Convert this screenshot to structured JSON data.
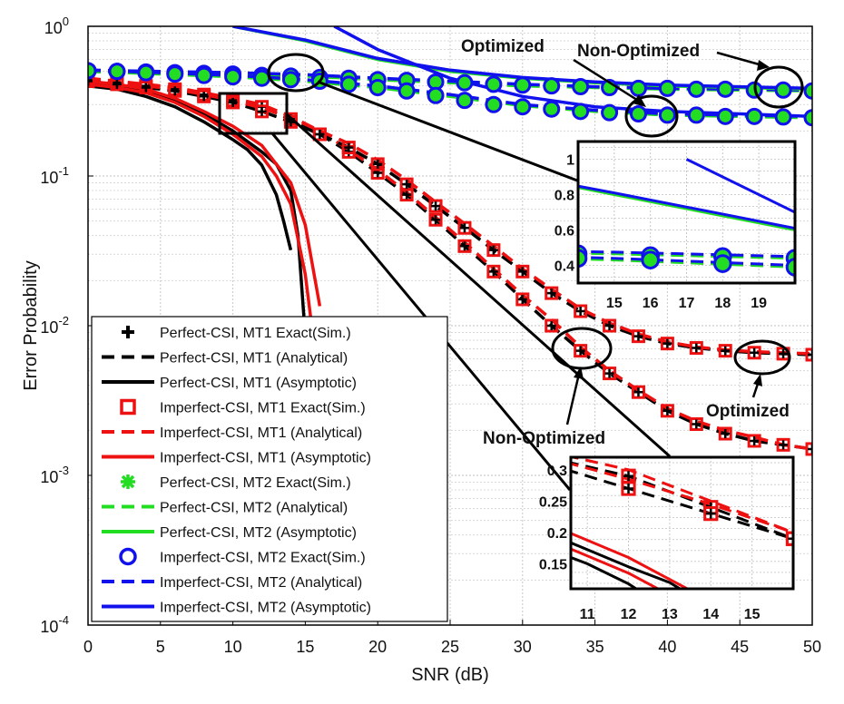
{
  "chart_data": {
    "type": "line",
    "title": "",
    "xlabel": "SNR (dB)",
    "ylabel": "Error Probability",
    "xlim": [
      0,
      50
    ],
    "ylim_log10": [
      -4,
      0
    ],
    "grid": true,
    "x_ticks": [
      "0",
      "5",
      "10",
      "15",
      "20",
      "25",
      "30",
      "35",
      "40",
      "45",
      "50"
    ],
    "y_tick_bases": [
      "10",
      "10",
      "10",
      "10",
      "10"
    ],
    "y_tick_exps": [
      "-4",
      "-3",
      "-2",
      "-1",
      "0"
    ],
    "legend_position": "lower-left",
    "colors": {
      "black": "#000000",
      "red": "#ee1111",
      "green": "#22dd22",
      "blue": "#1111ee"
    },
    "legend": [
      {
        "label": "Perfect-CSI, MT1 Exact(Sim.)",
        "color": "black",
        "style": "marker-plus"
      },
      {
        "label": "Perfect-CSI, MT1 (Analytical)",
        "color": "black",
        "style": "dashed"
      },
      {
        "label": "Perfect-CSI, MT1 (Asymptotic)",
        "color": "black",
        "style": "solid"
      },
      {
        "label": "Imperfect-CSI, MT1 Exact(Sim.)",
        "color": "red",
        "style": "marker-square"
      },
      {
        "label": "Imperfect-CSI, MT1 (Analytical)",
        "color": "red",
        "style": "dashed"
      },
      {
        "label": "Imperfect-CSI, MT1 (Asymptotic)",
        "color": "red",
        "style": "solid"
      },
      {
        "label": "Perfect-CSI, MT2 Exact(Sim.)",
        "color": "green",
        "style": "marker-star"
      },
      {
        "label": "Perfect-CSI, MT2 (Analytical)",
        "color": "green",
        "style": "dashed"
      },
      {
        "label": "Perfect-CSI, MT2 (Asymptotic)",
        "color": "green",
        "style": "solid"
      },
      {
        "label": "Imperfect-CSI, MT2 Exact(Sim.)",
        "color": "blue",
        "style": "marker-circle"
      },
      {
        "label": "Imperfect-CSI, MT2 (Analytical)",
        "color": "blue",
        "style": "dashed"
      },
      {
        "label": "Imperfect-CSI, MT2 (Asymptotic)",
        "color": "blue",
        "style": "solid"
      }
    ],
    "series": [
      {
        "name": "Perfect-CSI, MT1 Analytical (non-optimized)",
        "color": "black",
        "style": "dashed",
        "x": [
          0,
          2,
          4,
          6,
          8,
          10,
          12,
          14,
          16,
          18,
          20,
          22,
          24,
          26,
          28,
          30,
          32,
          34,
          36,
          38,
          40,
          42,
          44,
          46,
          48,
          50
        ],
        "y": [
          0.44,
          0.42,
          0.4,
          0.38,
          0.35,
          0.32,
          0.29,
          0.24,
          0.19,
          0.145,
          0.105,
          0.075,
          0.051,
          0.034,
          0.023,
          0.015,
          0.01,
          0.0068,
          0.0048,
          0.0036,
          0.0027,
          0.0022,
          0.0019,
          0.0017,
          0.0016,
          0.0015
        ]
      },
      {
        "name": "Imperfect-CSI, MT1 Analytical (non-optimized)",
        "color": "red",
        "style": "dashed",
        "x": [
          0,
          2,
          4,
          6,
          8,
          10,
          12,
          14,
          16,
          18,
          20,
          22,
          24,
          26,
          28,
          30,
          32,
          34,
          36,
          38,
          40,
          42,
          44,
          46,
          48,
          50
        ],
        "y": [
          0.45,
          0.43,
          0.41,
          0.39,
          0.36,
          0.33,
          0.3,
          0.25,
          0.2,
          0.15,
          0.11,
          0.078,
          0.053,
          0.036,
          0.024,
          0.016,
          0.011,
          0.0072,
          0.005,
          0.0037,
          0.0028,
          0.0023,
          0.002,
          0.0018,
          0.0016,
          0.0015
        ]
      },
      {
        "name": "Perfect-CSI, MT1 Analytical (optimized)",
        "color": "black",
        "style": "dashed",
        "x": [
          0,
          2,
          4,
          6,
          8,
          10,
          12,
          14,
          16,
          18,
          20,
          22,
          24,
          26,
          28,
          30,
          32,
          34,
          36,
          38,
          40,
          42,
          44,
          46,
          48,
          50
        ],
        "y": [
          0.43,
          0.41,
          0.39,
          0.37,
          0.34,
          0.31,
          0.27,
          0.23,
          0.19,
          0.155,
          0.12,
          0.088,
          0.063,
          0.045,
          0.032,
          0.023,
          0.0165,
          0.0125,
          0.01,
          0.0085,
          0.0076,
          0.0071,
          0.0068,
          0.0066,
          0.0065,
          0.0064
        ]
      },
      {
        "name": "Imperfect-CSI, MT1 Analytical (optimized)",
        "color": "red",
        "style": "dashed",
        "x": [
          0,
          2,
          4,
          6,
          8,
          10,
          12,
          14,
          16,
          18,
          20,
          22,
          24,
          26,
          28,
          30,
          32,
          34,
          36,
          38,
          40,
          42,
          44,
          46,
          48,
          50
        ],
        "y": [
          0.44,
          0.42,
          0.4,
          0.38,
          0.35,
          0.32,
          0.285,
          0.245,
          0.2,
          0.165,
          0.128,
          0.094,
          0.067,
          0.048,
          0.034,
          0.024,
          0.0175,
          0.013,
          0.0104,
          0.0088,
          0.0078,
          0.0072,
          0.0069,
          0.0067,
          0.0066,
          0.0065
        ]
      },
      {
        "name": "Perfect-CSI, MT1 Asymptotic",
        "color": "black",
        "style": "solid",
        "x": [
          0,
          2,
          4,
          6,
          8,
          10,
          11,
          12,
          13,
          13.5,
          14
        ],
        "y": [
          0.4,
          0.38,
          0.34,
          0.29,
          0.23,
          0.175,
          0.15,
          0.118,
          0.075,
          0.05,
          0.032
        ]
      },
      {
        "name": "Perfect-CSI, MT1 Asymptotic (second)",
        "color": "black",
        "style": "solid",
        "x": [
          0,
          2,
          4,
          6,
          8,
          10,
          12,
          13,
          14,
          14.5,
          15
        ],
        "y": [
          0.42,
          0.4,
          0.37,
          0.32,
          0.26,
          0.2,
          0.145,
          0.12,
          0.08,
          0.04,
          0.0085
        ]
      },
      {
        "name": "Imperfect-CSI, MT1 Asymptotic",
        "color": "red",
        "style": "solid",
        "x": [
          0,
          2,
          4,
          6,
          8,
          10,
          12,
          13,
          14,
          15,
          15.5
        ],
        "y": [
          0.41,
          0.39,
          0.36,
          0.31,
          0.25,
          0.19,
          0.135,
          0.1,
          0.065,
          0.022,
          0.009
        ]
      },
      {
        "name": "Imperfect-CSI, MT1 Asymptotic (second)",
        "color": "red",
        "style": "solid",
        "x": [
          0,
          2,
          4,
          6,
          8,
          10,
          12,
          14,
          15,
          16
        ],
        "y": [
          0.43,
          0.41,
          0.38,
          0.33,
          0.27,
          0.215,
          0.16,
          0.09,
          0.047,
          0.0135
        ]
      },
      {
        "name": "Perfect-CSI, MT2 Analytical (non-optimized)",
        "color": "green",
        "style": "dashed",
        "x": [
          0,
          5,
          10,
          15,
          20,
          25,
          30,
          35,
          40,
          45,
          50
        ],
        "y": [
          0.5,
          0.49,
          0.48,
          0.465,
          0.44,
          0.42,
          0.4,
          0.39,
          0.38,
          0.375,
          0.37
        ]
      },
      {
        "name": "Imperfect-CSI, MT2 Analytical (non-optimized)",
        "color": "blue",
        "style": "dashed",
        "x": [
          0,
          5,
          10,
          15,
          20,
          25,
          30,
          35,
          40,
          45,
          50
        ],
        "y": [
          0.51,
          0.5,
          0.49,
          0.475,
          0.45,
          0.43,
          0.41,
          0.395,
          0.385,
          0.38,
          0.375
        ]
      },
      {
        "name": "Perfect-CSI, MT2 Analytical (optimized)",
        "color": "green",
        "style": "dashed",
        "x": [
          0,
          5,
          10,
          15,
          20,
          25,
          30,
          35,
          40,
          45,
          50
        ],
        "y": [
          0.5,
          0.48,
          0.46,
          0.43,
          0.39,
          0.34,
          0.295,
          0.27,
          0.255,
          0.25,
          0.245
        ]
      },
      {
        "name": "Imperfect-CSI, MT2 Analytical (optimized)",
        "color": "blue",
        "style": "dashed",
        "x": [
          0,
          5,
          10,
          15,
          20,
          25,
          30,
          35,
          40,
          45,
          50
        ],
        "y": [
          0.51,
          0.49,
          0.47,
          0.44,
          0.4,
          0.35,
          0.3,
          0.275,
          0.26,
          0.255,
          0.25
        ]
      },
      {
        "name": "Perfect-CSI, MT2 Asymptotic (upper)",
        "color": "green",
        "style": "solid",
        "x": [
          10,
          15,
          20,
          25,
          30,
          35,
          40,
          45,
          50
        ],
        "y": [
          1.0,
          0.8,
          0.6,
          0.5,
          0.45,
          0.42,
          0.4,
          0.39,
          0.38
        ]
      },
      {
        "name": "Imperfect-CSI, MT2 Asymptotic (upper)",
        "color": "blue",
        "style": "solid",
        "x": [
          10,
          15,
          20,
          25,
          30,
          35,
          40,
          45,
          50
        ],
        "y": [
          1.0,
          0.81,
          0.61,
          0.51,
          0.455,
          0.425,
          0.405,
          0.395,
          0.385
        ]
      },
      {
        "name": "Imperfect-CSI, MT2 Asymptotic (lower)",
        "color": "blue",
        "style": "solid",
        "x": [
          17,
          20,
          25,
          30,
          35,
          40,
          45,
          50
        ],
        "y": [
          1.0,
          0.7,
          0.45,
          0.34,
          0.29,
          0.27,
          0.26,
          0.25
        ]
      }
    ],
    "markers": [
      {
        "name": "MT1 Exact Sim. (non-optimized)",
        "color": "red",
        "shape": "square-plus",
        "x": [
          0,
          2,
          4,
          6,
          8,
          10,
          12,
          14,
          16,
          18,
          20,
          22,
          24,
          26,
          28,
          30,
          32,
          34,
          36,
          38,
          40,
          42,
          44,
          46,
          48,
          50
        ],
        "y": [
          0.44,
          0.42,
          0.4,
          0.38,
          0.35,
          0.32,
          0.29,
          0.24,
          0.19,
          0.145,
          0.105,
          0.075,
          0.051,
          0.034,
          0.023,
          0.015,
          0.01,
          0.0068,
          0.0048,
          0.0036,
          0.0027,
          0.0022,
          0.0019,
          0.0017,
          0.0016,
          0.0015
        ]
      },
      {
        "name": "MT1 Exact Sim. (optimized)",
        "color": "red",
        "shape": "square-plus",
        "x": [
          0,
          2,
          4,
          6,
          8,
          10,
          12,
          14,
          16,
          18,
          20,
          22,
          24,
          26,
          28,
          30,
          32,
          34,
          36,
          38,
          40,
          42,
          44,
          46,
          48,
          50
        ],
        "y": [
          0.43,
          0.41,
          0.39,
          0.37,
          0.34,
          0.31,
          0.27,
          0.23,
          0.19,
          0.155,
          0.12,
          0.088,
          0.063,
          0.045,
          0.032,
          0.023,
          0.0165,
          0.0125,
          0.01,
          0.0085,
          0.0076,
          0.0071,
          0.0068,
          0.0066,
          0.0065,
          0.0064
        ]
      },
      {
        "name": "MT2 Exact Sim. (non-optimized)",
        "color": "blue",
        "shape": "circle-star",
        "x": [
          0,
          2,
          4,
          6,
          8,
          10,
          12,
          14,
          16,
          18,
          20,
          22,
          24,
          26,
          28,
          30,
          32,
          34,
          36,
          38,
          40,
          42,
          44,
          46,
          48,
          50
        ],
        "y": [
          0.505,
          0.5,
          0.495,
          0.49,
          0.485,
          0.48,
          0.47,
          0.465,
          0.455,
          0.45,
          0.44,
          0.435,
          0.425,
          0.42,
          0.41,
          0.405,
          0.4,
          0.395,
          0.39,
          0.385,
          0.385,
          0.38,
          0.38,
          0.375,
          0.375,
          0.37
        ]
      },
      {
        "name": "MT2 Exact Sim. (optimized)",
        "color": "blue",
        "shape": "circle-star",
        "x": [
          0,
          2,
          4,
          6,
          8,
          10,
          12,
          14,
          16,
          18,
          20,
          22,
          24,
          26,
          28,
          30,
          32,
          34,
          36,
          38,
          40,
          42,
          44,
          46,
          48,
          50
        ],
        "y": [
          0.505,
          0.5,
          0.49,
          0.48,
          0.47,
          0.46,
          0.45,
          0.44,
          0.43,
          0.41,
          0.39,
          0.37,
          0.345,
          0.32,
          0.3,
          0.29,
          0.28,
          0.27,
          0.265,
          0.26,
          0.255,
          0.255,
          0.25,
          0.25,
          0.248,
          0.245
        ]
      }
    ],
    "annotations": {
      "optimized_top": "Optimized",
      "non_optimized_top": "Non-Optimized",
      "optimized_bottom": "Optimized",
      "non_optimized_bottom": "Non-Optimized"
    },
    "inset_top": {
      "xlim": [
        14,
        20
      ],
      "ylim": [
        0.3,
        1.1
      ],
      "x_ticks": [
        "15",
        "16",
        "17",
        "18",
        "19"
      ],
      "y_ticks": [
        "1",
        "0.8",
        "0.6",
        "0.4"
      ]
    },
    "inset_bottom": {
      "xlim": [
        10.6,
        16
      ],
      "ylim": [
        0.11,
        0.32
      ],
      "x_ticks": [
        "11",
        "12",
        "13",
        "14",
        "15"
      ],
      "y_ticks": [
        "0.3",
        "0.25",
        "0.2",
        "0.15"
      ]
    }
  }
}
